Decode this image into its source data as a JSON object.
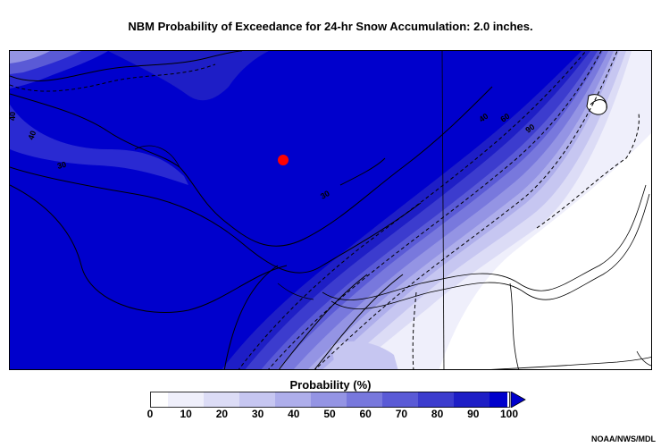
{
  "title": "NBM Probability of Exceedance for 24-hr Snow Accumulation: 2.0 inches.",
  "legend": {
    "title": "Probability (%)",
    "ticks": [
      "0",
      "10",
      "20",
      "30",
      "40",
      "50",
      "60",
      "70",
      "80",
      "90",
      "100"
    ],
    "colors": [
      "#ffffff",
      "#efeffb",
      "#dcdcf6",
      "#c6c6f1",
      "#aeaeeb",
      "#9494e4",
      "#7878dd",
      "#5a5ad6",
      "#3c3cce",
      "#1e1ec6",
      "#0000cc"
    ]
  },
  "contour_labels": [
    "40",
    "40",
    "30",
    "60",
    "40",
    "90",
    "30"
  ],
  "marker_color": "#ff0000",
  "credit": "NOAA/NWS/MDL"
}
